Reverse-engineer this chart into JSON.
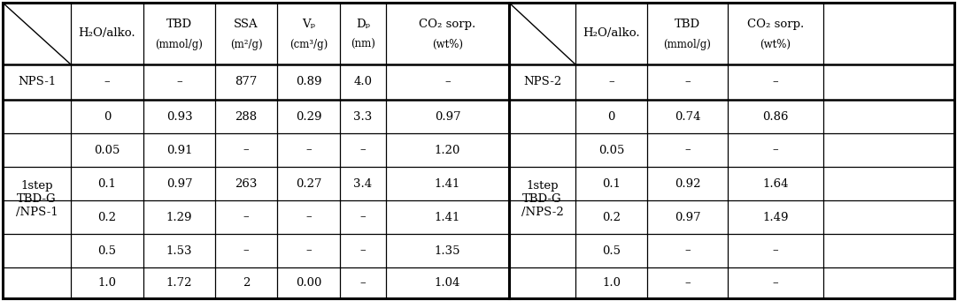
{
  "left_table": {
    "nps1_row": [
      "NPS-1",
      "–",
      "–",
      "877",
      "0.89",
      "4.0",
      "–"
    ],
    "data_rows": [
      [
        "0",
        "0.93",
        "288",
        "0.29",
        "3.3",
        "0.97"
      ],
      [
        "0.05",
        "0.91",
        "–",
        "–",
        "–",
        "1.20"
      ],
      [
        "0.1",
        "0.97",
        "263",
        "0.27",
        "3.4",
        "1.41"
      ],
      [
        "0.2",
        "1.29",
        "–",
        "–",
        "–",
        "1.41"
      ],
      [
        "0.5",
        "1.53",
        "–",
        "–",
        "–",
        "1.35"
      ],
      [
        "1.0",
        "1.72",
        "2",
        "0.00",
        "–",
        "1.04"
      ]
    ],
    "merged_label": "1step\nTBD-G\n/NPS-1"
  },
  "right_table": {
    "nps2_row": [
      "NPS-2",
      "–",
      "–",
      "–"
    ],
    "data_rows": [
      [
        "0",
        "0.74",
        "0.86"
      ],
      [
        "0.05",
        "–",
        "–"
      ],
      [
        "0.1",
        "0.92",
        "1.64"
      ],
      [
        "0.2",
        "0.97",
        "1.49"
      ],
      [
        "0.5",
        "–",
        "–"
      ],
      [
        "1.0",
        "–",
        "–"
      ]
    ],
    "merged_label": "1step\nTBD-G\n/NPS-2"
  },
  "lx": [
    3,
    80,
    162,
    243,
    313,
    384,
    436,
    575
  ],
  "rx": [
    575,
    650,
    731,
    822,
    930,
    1078
  ],
  "row_tops": [
    3,
    73,
    113,
    151,
    189,
    227,
    265,
    303,
    338
  ],
  "font_size": 9.5,
  "header_font_size": 9.5,
  "bg_color": "#ffffff",
  "text_color": "#000000",
  "outer_lw": 2.2,
  "inner_lw": 0.9,
  "thick_lw": 1.8
}
